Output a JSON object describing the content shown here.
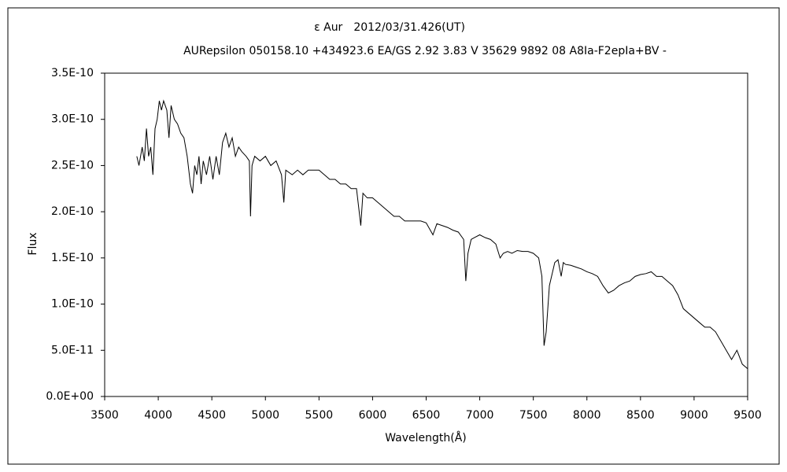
{
  "chart_data": {
    "type": "line",
    "title": "ε Aur　2012/03/31.426(UT)",
    "subtitle": "AURepsilon 050158.10 +434923.6 EA/GS 2.92 3.83 V 35629 9892 08 A8Ia-F2epIa+BV -",
    "xlabel": "Wavelength(Å)",
    "ylabel": "Flux",
    "color": "#000000",
    "grid": false,
    "xlim": [
      3500,
      9500
    ],
    "xticks": [
      3500,
      4000,
      4500,
      5000,
      5500,
      6000,
      6500,
      7000,
      7500,
      8000,
      8500,
      9000,
      9500
    ],
    "ylim": [
      0,
      3.5e-10
    ],
    "yticks": [
      {
        "value": 0,
        "label": "0.0E+00"
      },
      {
        "value": 5e-11,
        "label": "5.0E-11"
      },
      {
        "value": 1e-10,
        "label": "1.0E-10"
      },
      {
        "value": 1.5e-10,
        "label": "1.5E-10"
      },
      {
        "value": 2e-10,
        "label": "2.0E-10"
      },
      {
        "value": 2.5e-10,
        "label": "2.5E-10"
      },
      {
        "value": 3e-10,
        "label": "3.0E-10"
      },
      {
        "value": 3.5e-10,
        "label": "3.5E-10"
      }
    ],
    "x": [
      3800,
      3820,
      3850,
      3870,
      3890,
      3910,
      3930,
      3950,
      3970,
      3990,
      4010,
      4030,
      4050,
      4080,
      4100,
      4120,
      4150,
      4180,
      4210,
      4240,
      4270,
      4300,
      4320,
      4340,
      4360,
      4380,
      4400,
      4420,
      4450,
      4480,
      4510,
      4540,
      4570,
      4600,
      4630,
      4660,
      4690,
      4720,
      4750,
      4780,
      4820,
      4850,
      4861,
      4875,
      4900,
      4950,
      5000,
      5050,
      5100,
      5150,
      5172,
      5190,
      5250,
      5300,
      5350,
      5400,
      5450,
      5500,
      5550,
      5600,
      5650,
      5700,
      5750,
      5800,
      5850,
      5890,
      5910,
      5950,
      6000,
      6050,
      6100,
      6150,
      6200,
      6250,
      6300,
      6350,
      6400,
      6450,
      6500,
      6563,
      6600,
      6650,
      6700,
      6750,
      6800,
      6850,
      6870,
      6890,
      6920,
      6950,
      7000,
      7050,
      7100,
      7150,
      7190,
      7220,
      7260,
      7300,
      7350,
      7400,
      7450,
      7500,
      7550,
      7580,
      7600,
      7620,
      7650,
      7680,
      7700,
      7730,
      7760,
      7780,
      7800,
      7850,
      7900,
      7950,
      8000,
      8050,
      8100,
      8150,
      8200,
      8250,
      8300,
      8350,
      8400,
      8450,
      8500,
      8550,
      8600,
      8650,
      8700,
      8750,
      8800,
      8850,
      8900,
      8950,
      9000,
      9050,
      9100,
      9150,
      9200,
      9250,
      9300,
      9350,
      9400,
      9450,
      9500
    ],
    "values": [
      2.6e-10,
      2.5e-10,
      2.7e-10,
      2.55e-10,
      2.9e-10,
      2.6e-10,
      2.7e-10,
      2.4e-10,
      2.9e-10,
      3e-10,
      3.2e-10,
      3.1e-10,
      3.2e-10,
      3.1e-10,
      2.8e-10,
      3.15e-10,
      3e-10,
      2.95e-10,
      2.85e-10,
      2.8e-10,
      2.6e-10,
      2.3e-10,
      2.2e-10,
      2.5e-10,
      2.4e-10,
      2.6e-10,
      2.3e-10,
      2.55e-10,
      2.4e-10,
      2.6e-10,
      2.35e-10,
      2.6e-10,
      2.4e-10,
      2.75e-10,
      2.85e-10,
      2.7e-10,
      2.8e-10,
      2.6e-10,
      2.7e-10,
      2.65e-10,
      2.6e-10,
      2.55e-10,
      1.95e-10,
      2.5e-10,
      2.6e-10,
      2.55e-10,
      2.6e-10,
      2.5e-10,
      2.55e-10,
      2.4e-10,
      2.1e-10,
      2.45e-10,
      2.4e-10,
      2.45e-10,
      2.4e-10,
      2.45e-10,
      2.45e-10,
      2.45e-10,
      2.4e-10,
      2.35e-10,
      2.35e-10,
      2.3e-10,
      2.3e-10,
      2.25e-10,
      2.25e-10,
      1.85e-10,
      2.2e-10,
      2.15e-10,
      2.15e-10,
      2.1e-10,
      2.05e-10,
      2e-10,
      1.95e-10,
      1.95e-10,
      1.9e-10,
      1.9e-10,
      1.9e-10,
      1.9e-10,
      1.88e-10,
      1.75e-10,
      1.87e-10,
      1.85e-10,
      1.83e-10,
      1.8e-10,
      1.78e-10,
      1.7e-10,
      1.25e-10,
      1.55e-10,
      1.7e-10,
      1.72e-10,
      1.75e-10,
      1.72e-10,
      1.7e-10,
      1.65e-10,
      1.5e-10,
      1.55e-10,
      1.57e-10,
      1.55e-10,
      1.58e-10,
      1.57e-10,
      1.57e-10,
      1.55e-10,
      1.5e-10,
      1.3e-10,
      5.5e-11,
      7e-11,
      1.2e-10,
      1.35e-10,
      1.45e-10,
      1.48e-10,
      1.3e-10,
      1.45e-10,
      1.43e-10,
      1.42e-10,
      1.4e-10,
      1.38e-10,
      1.35e-10,
      1.33e-10,
      1.3e-10,
      1.2e-10,
      1.12e-10,
      1.15e-10,
      1.2e-10,
      1.23e-10,
      1.25e-10,
      1.3e-10,
      1.32e-10,
      1.33e-10,
      1.35e-10,
      1.3e-10,
      1.3e-10,
      1.25e-10,
      1.2e-10,
      1.1e-10,
      9.5e-11,
      9e-11,
      8.5e-11,
      8e-11,
      7.5e-11,
      7.5e-11,
      7e-11,
      6e-11,
      5e-11,
      4e-11,
      5e-11,
      3.5e-11,
      3e-11
    ]
  }
}
